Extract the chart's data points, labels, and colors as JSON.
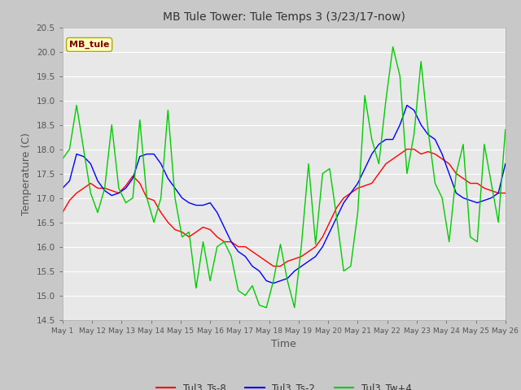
{
  "title": "MB Tule Tower: Tule Temps 3 (3/23/17-now)",
  "xlabel": "Time",
  "ylabel": "Temperature (C)",
  "ylim": [
    14.5,
    20.5
  ],
  "yticks": [
    14.5,
    15.0,
    15.5,
    16.0,
    16.5,
    17.0,
    17.5,
    18.0,
    18.5,
    19.0,
    19.5,
    20.0,
    20.5
  ],
  "plot_bg_color": "#e8e8e8",
  "fig_bg_color": "#c8c8c8",
  "legend_label": "MB_tule",
  "legend_box_facecolor": "#ffffc0",
  "legend_box_edgecolor": "#aaaa00",
  "legend_text_color": "#800000",
  "series_labels": [
    "Tul3_Ts-8",
    "Tul3_Ts-2",
    "Tul3_Tw+4"
  ],
  "series_colors": [
    "#ff0000",
    "#0000ff",
    "#00cc00"
  ],
  "xtick_labels": [
    "May 1",
    "May 12",
    "May 13",
    "May 14",
    "May 15",
    "May 16",
    "May 17",
    "May 18",
    "May 19",
    "May 20",
    "May 21",
    "May 22",
    "May 23",
    "May 24",
    "May 25",
    "May 26"
  ],
  "red_y": [
    16.7,
    16.95,
    17.1,
    17.2,
    17.3,
    17.2,
    17.2,
    17.15,
    17.1,
    17.25,
    17.45,
    17.3,
    17.0,
    16.95,
    16.7,
    16.5,
    16.35,
    16.3,
    16.2,
    16.3,
    16.4,
    16.35,
    16.2,
    16.1,
    16.1,
    16.0,
    16.0,
    15.9,
    15.8,
    15.7,
    15.6,
    15.6,
    15.7,
    15.75,
    15.8,
    15.9,
    16.0,
    16.2,
    16.5,
    16.8,
    17.0,
    17.1,
    17.2,
    17.25,
    17.3,
    17.5,
    17.7,
    17.8,
    17.9,
    18.0,
    18.0,
    17.9,
    17.95,
    17.9,
    17.8,
    17.7,
    17.5,
    17.4,
    17.3,
    17.3,
    17.2,
    17.15,
    17.1,
    17.1
  ],
  "blue_y": [
    17.2,
    17.35,
    17.9,
    17.85,
    17.7,
    17.35,
    17.15,
    17.05,
    17.1,
    17.2,
    17.4,
    17.85,
    17.9,
    17.9,
    17.7,
    17.4,
    17.2,
    17.0,
    16.9,
    16.85,
    16.85,
    16.9,
    16.7,
    16.4,
    16.1,
    15.9,
    15.8,
    15.6,
    15.5,
    15.3,
    15.25,
    15.3,
    15.35,
    15.5,
    15.6,
    15.7,
    15.8,
    16.0,
    16.3,
    16.6,
    16.9,
    17.1,
    17.3,
    17.6,
    17.9,
    18.1,
    18.2,
    18.2,
    18.5,
    18.9,
    18.8,
    18.5,
    18.3,
    18.2,
    17.9,
    17.5,
    17.1,
    17.0,
    16.95,
    16.9,
    16.95,
    17.0,
    17.1,
    17.7
  ],
  "green_y": [
    17.8,
    18.0,
    18.9,
    18.0,
    17.1,
    16.7,
    17.2,
    18.5,
    17.2,
    16.9,
    17.0,
    18.6,
    17.0,
    16.5,
    17.0,
    18.8,
    17.0,
    16.2,
    16.3,
    15.15,
    16.1,
    15.3,
    16.0,
    16.1,
    15.8,
    15.1,
    15.0,
    15.2,
    14.8,
    14.75,
    15.3,
    16.05,
    15.3,
    14.75,
    16.05,
    17.7,
    16.05,
    17.5,
    17.6,
    16.6,
    15.5,
    15.6,
    16.7,
    19.1,
    18.2,
    17.7,
    19.0,
    20.1,
    19.5,
    17.5,
    18.3,
    19.8,
    18.4,
    17.3,
    17.0,
    16.1,
    17.5,
    18.1,
    16.2,
    16.1,
    18.1,
    17.3,
    16.5,
    18.4
  ]
}
